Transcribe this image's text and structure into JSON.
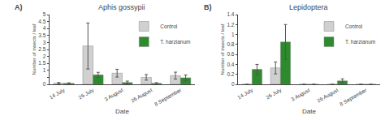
{
  "chart_data": [
    {
      "type": "bar",
      "title": "Aphis gossypii",
      "xlabel": "Date",
      "ylabel": "Number of insects / leaf",
      "annotations": [
        "A)"
      ],
      "categories": [
        "14 July",
        "26 July",
        "3 August",
        "26 August",
        "8 September"
      ],
      "series": [
        {
          "name": "Control",
          "color": "#d0d0d0",
          "values": [
            0.08,
            2.75,
            0.8,
            0.5,
            0.62
          ],
          "errors": [
            0.05,
            1.65,
            0.28,
            0.2,
            0.25
          ]
        },
        {
          "name": "T. harzianum",
          "color": "#2d8a2d",
          "values": [
            0.07,
            0.68,
            0.13,
            0.07,
            0.47
          ],
          "errors": [
            0.04,
            0.18,
            0.1,
            0.05,
            0.2
          ]
        }
      ],
      "ylim": [
        0,
        5
      ],
      "yticks": [
        0,
        {
          "value": 0.5,
          "label": ""
        },
        1,
        1.5,
        2,
        2.5,
        3,
        3.5,
        4,
        4.5,
        5
      ],
      "grid": false,
      "legend": "upper right"
    },
    {
      "type": "bar",
      "title": "Lepidoptera",
      "xlabel": "Date",
      "ylabel": "Number of insects / leaf",
      "annotations": [
        "B)"
      ],
      "categories": [
        "14 July",
        "26 July",
        "3 August",
        "26 August",
        "8 September"
      ],
      "series": [
        {
          "name": "Control",
          "color": "#d0d0d0",
          "values": [
            0.0,
            0.33,
            0.0,
            0.0,
            0.0
          ],
          "errors": [
            0.0,
            0.12,
            0.0,
            0.0,
            0.0
          ]
        },
        {
          "name": "T. harzianum",
          "color": "#2d8a2d",
          "values": [
            0.3,
            0.85,
            0.0,
            0.07,
            0.0
          ],
          "errors": [
            0.1,
            0.35,
            0.0,
            0.04,
            0.0
          ]
        }
      ],
      "ylim": [
        0,
        1.4
      ],
      "yticks": [
        0,
        0.2,
        0.4,
        0.6,
        0.8,
        1,
        1.2,
        1.4
      ],
      "grid": false,
      "legend": "upper right"
    }
  ]
}
